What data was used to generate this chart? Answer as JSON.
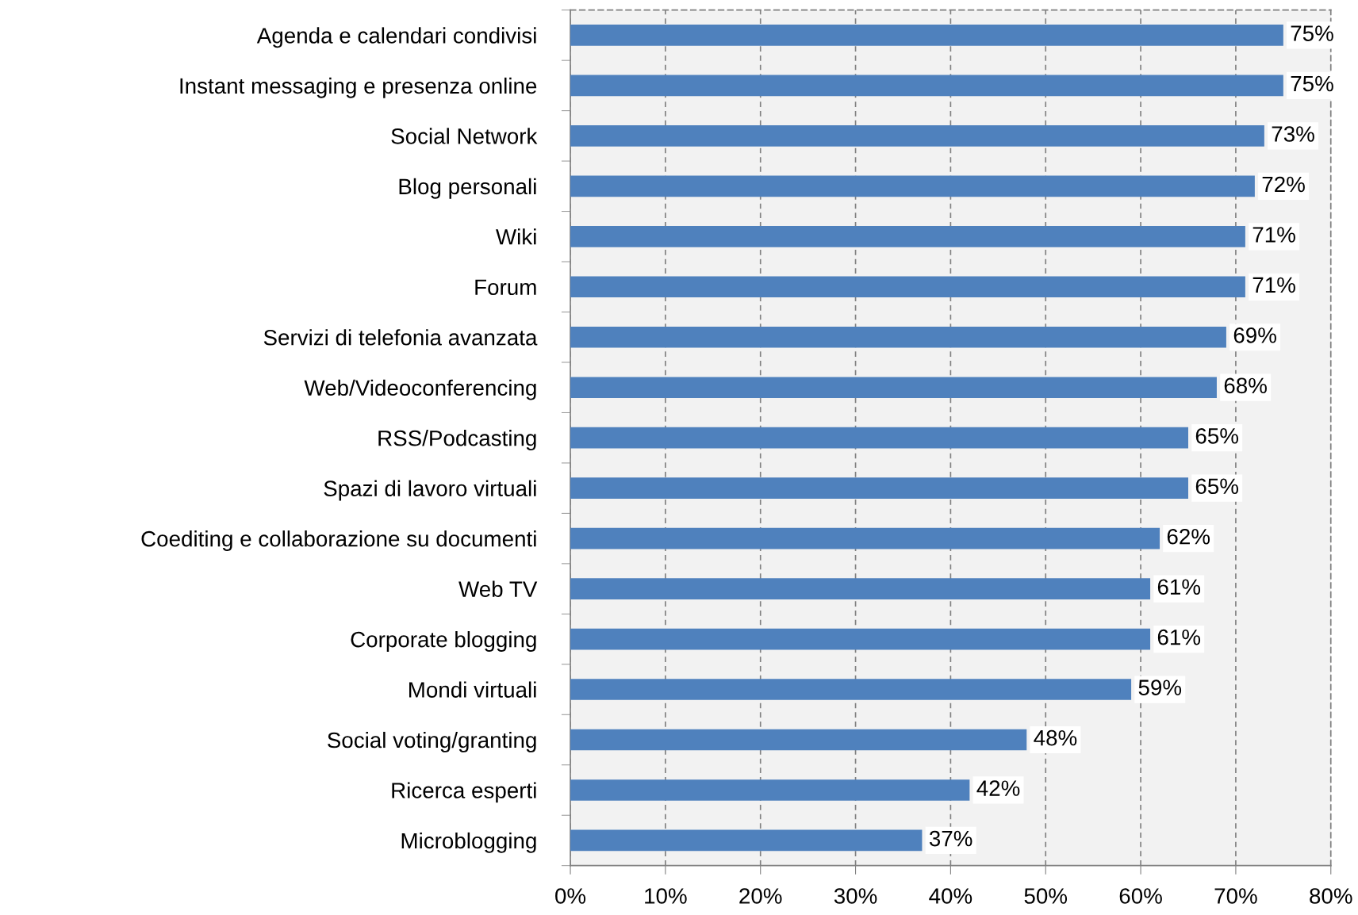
{
  "chart_data": {
    "type": "bar",
    "orientation": "horizontal",
    "categories": [
      "Agenda e calendari condivisi",
      "Instant messaging e presenza online",
      "Social Network",
      "Blog personali",
      "Wiki",
      "Forum",
      "Servizi di telefonia avanzata",
      "Web/Videoconferencing",
      "RSS/Podcasting",
      "Spazi di lavoro virtuali",
      "Coediting e collaborazione su documenti",
      "Web TV",
      "Corporate blogging",
      "Mondi virtuali",
      "Social voting/granting",
      "Ricerca esperti",
      "Microblogging"
    ],
    "values": [
      75,
      75,
      73,
      72,
      71,
      71,
      69,
      68,
      65,
      65,
      62,
      61,
      61,
      59,
      48,
      42,
      37
    ],
    "value_labels": [
      "75%",
      "75%",
      "73%",
      "72%",
      "71%",
      "71%",
      "69%",
      "68%",
      "65%",
      "65%",
      "62%",
      "61%",
      "61%",
      "59%",
      "48%",
      "42%",
      "37%"
    ],
    "color": "#4f81bd",
    "xlim": [
      0,
      80
    ],
    "xticks": [
      {
        "value": 0,
        "label": "0%"
      },
      {
        "value": 10,
        "label": "10%"
      },
      {
        "value": 20,
        "label": "20%"
      },
      {
        "value": 30,
        "label": "30%"
      },
      {
        "value": 40,
        "label": "40%"
      },
      {
        "value": 50,
        "label": "50%"
      },
      {
        "value": 60,
        "label": "60%"
      },
      {
        "value": 70,
        "label": "70%"
      },
      {
        "value": 80,
        "label": "80%"
      }
    ],
    "grid": "x",
    "legend": false
  }
}
